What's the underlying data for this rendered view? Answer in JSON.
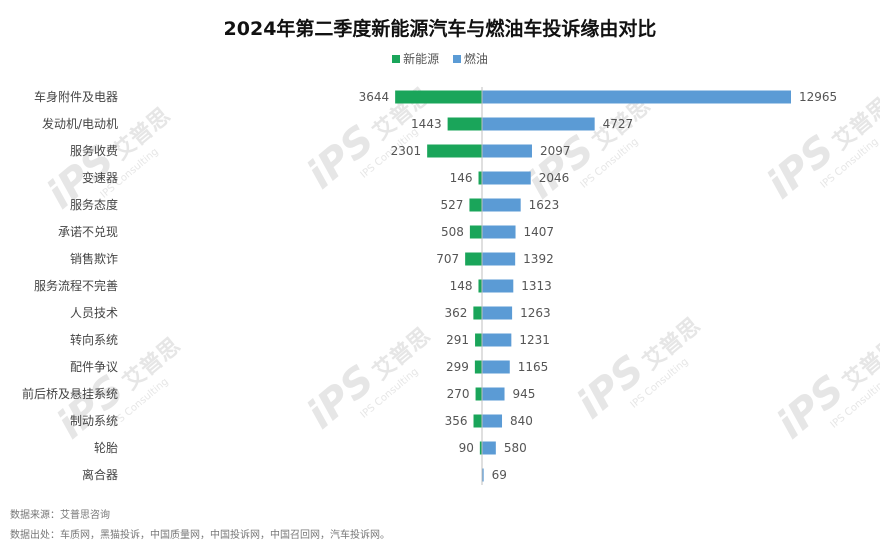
{
  "watermark": {
    "logo": "iPS",
    "cn": "艾普思",
    "en": "IPS Consulting"
  },
  "chart_data": {
    "type": "bar",
    "orientation": "horizontal",
    "title": "2024年第二季度新能源汽车与燃油车投诉缘由对比",
    "categories": [
      "车身附件及电器",
      "发动机/电动机",
      "服务收费",
      "变速器",
      "服务态度",
      "承诺不兑现",
      "销售欺诈",
      "服务流程不完善",
      "人员技术",
      "转向系统",
      "配件争议",
      "前后桥及悬挂系统",
      "制动系统",
      "轮胎",
      "离合器"
    ],
    "series": [
      {
        "name": "新能源",
        "color": "#1aa55a",
        "direction": "left",
        "values": [
          3644,
          1443,
          2301,
          146,
          527,
          508,
          707,
          148,
          362,
          291,
          299,
          270,
          356,
          90,
          null
        ]
      },
      {
        "name": "燃油",
        "color": "#5b9bd5",
        "direction": "right",
        "values": [
          12965,
          4727,
          2097,
          2046,
          1623,
          1407,
          1392,
          1313,
          1263,
          1231,
          1165,
          945,
          840,
          580,
          69
        ]
      }
    ],
    "legend_position": "top-center",
    "grid": false
  },
  "footer": {
    "source": "数据来源：艾普思咨询",
    "origin": "数据出处：车质网，黑猫投诉，中国质量网，中国投诉网，中国召回网，汽车投诉网。"
  }
}
